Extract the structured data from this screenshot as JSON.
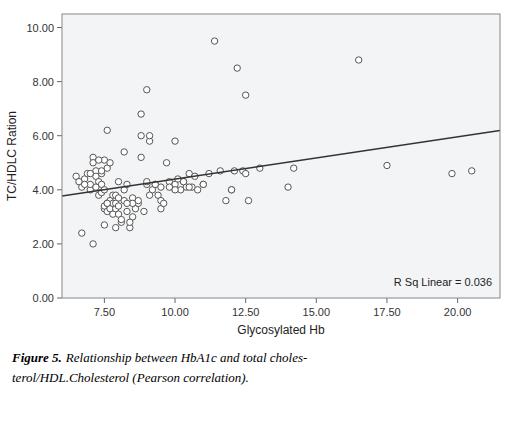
{
  "chart_data": {
    "type": "scatter",
    "x_label": "Glycosylated Hb",
    "y_label": "TC/HDLC Ration",
    "annotation": "R Sq Linear = 0.036",
    "caption": [
      "Figure 5.",
      "Relationship between HbA1c and total choles-",
      "terol/HDL.Cholesterol (Pearson correlation)."
    ],
    "xlim": [
      6.0,
      21.5
    ],
    "ylim": [
      0.0,
      10.5
    ],
    "xticks": [
      {
        "value": 7.5,
        "label": "7.50"
      },
      {
        "value": 10.0,
        "label": "10.00"
      },
      {
        "value": 12.5,
        "label": "12.50"
      },
      {
        "value": 15.0,
        "label": "15.00"
      },
      {
        "value": 17.5,
        "label": "17.50"
      },
      {
        "value": 20.0,
        "label": "20.00"
      }
    ],
    "yticks": [
      {
        "value": 0.0,
        "label": "0.00"
      },
      {
        "value": 2.0,
        "label": "2.00"
      },
      {
        "value": 4.0,
        "label": "4.00"
      },
      {
        "value": 6.0,
        "label": "6.00"
      },
      {
        "value": 8.0,
        "label": "8.00"
      },
      {
        "value": 10.0,
        "label": "10.00"
      }
    ],
    "grid": false,
    "series": [
      {
        "type": "scatter",
        "color": "#555555",
        "marker": "circle",
        "x": [
          6.5,
          6.6,
          6.7,
          6.8,
          6.9,
          7.0,
          7.0,
          7.1,
          7.1,
          7.2,
          7.2,
          7.3,
          7.3,
          7.3,
          7.4,
          7.4,
          7.4,
          7.5,
          7.5,
          7.5,
          7.5,
          7.6,
          7.6,
          7.6,
          7.7,
          7.7,
          7.7,
          7.8,
          7.8,
          7.8,
          7.9,
          7.9,
          7.9,
          8.0,
          8.0,
          8.0,
          8.1,
          8.1,
          8.2,
          8.2,
          8.3,
          8.3,
          8.4,
          8.5,
          8.5,
          8.6,
          8.7,
          8.8,
          8.8,
          8.9,
          9.0,
          9.0,
          9.0,
          9.1,
          9.1,
          9.2,
          9.3,
          9.4,
          9.5,
          9.5,
          9.6,
          9.7,
          9.8,
          9.9,
          10.0,
          10.0,
          10.1,
          10.2,
          10.3,
          10.4,
          10.5,
          10.6,
          10.7,
          10.8,
          11.0,
          11.2,
          11.4,
          11.6,
          11.8,
          12.0,
          12.0,
          12.1,
          12.2,
          12.4,
          12.5,
          12.5,
          12.6,
          13.0,
          14.0,
          14.2,
          16.5,
          17.5,
          19.8,
          20.5,
          8.5,
          7.2,
          7.4,
          7.6,
          8.0,
          8.3,
          8.7,
          9.1,
          9.5,
          10.0,
          10.5,
          11.0,
          6.8,
          7.0,
          7.3,
          7.6,
          8.2,
          8.8,
          9.3,
          9.8,
          10.3,
          6.7,
          7.1,
          7.5,
          7.9,
          8.4
        ],
        "values": [
          4.5,
          4.3,
          4.1,
          4.4,
          4.6,
          4.0,
          4.2,
          5.2,
          5.0,
          4.7,
          4.5,
          4.1,
          3.8,
          4.3,
          4.2,
          3.9,
          4.6,
          3.3,
          3.4,
          4.0,
          5.1,
          3.2,
          3.5,
          4.8,
          3.3,
          3.6,
          5.0,
          3.1,
          3.5,
          3.8,
          3.3,
          3.5,
          3.8,
          3.1,
          3.4,
          4.3,
          2.8,
          2.9,
          3.6,
          4.0,
          3.2,
          4.2,
          2.6,
          3.0,
          3.7,
          3.3,
          3.5,
          6.0,
          6.8,
          3.2,
          7.7,
          4.2,
          4.3,
          5.8,
          6.0,
          4.0,
          4.2,
          3.8,
          3.3,
          3.6,
          3.5,
          5.0,
          4.3,
          4.1,
          4.2,
          5.8,
          4.4,
          4.0,
          4.3,
          4.1,
          4.6,
          4.1,
          4.5,
          4.0,
          4.2,
          4.6,
          9.5,
          4.7,
          3.6,
          4.0,
          4.0,
          4.7,
          8.5,
          4.7,
          4.6,
          7.5,
          3.6,
          4.8,
          4.1,
          4.8,
          8.8,
          4.9,
          4.6,
          4.7,
          3.5,
          4.1,
          4.7,
          3.5,
          3.7,
          3.5,
          3.6,
          3.8,
          4.1,
          4.0,
          4.1,
          4.2,
          4.2,
          4.6,
          5.1,
          6.2,
          5.4,
          5.2,
          4.2,
          4.1,
          4.3,
          2.4,
          2.0,
          2.7,
          2.6,
          2.8
        ]
      },
      {
        "type": "line",
        "color": "#333333",
        "line_style": "solid",
        "x": [
          6.0,
          21.5
        ],
        "values": [
          3.772,
          6.193
        ]
      }
    ]
  }
}
